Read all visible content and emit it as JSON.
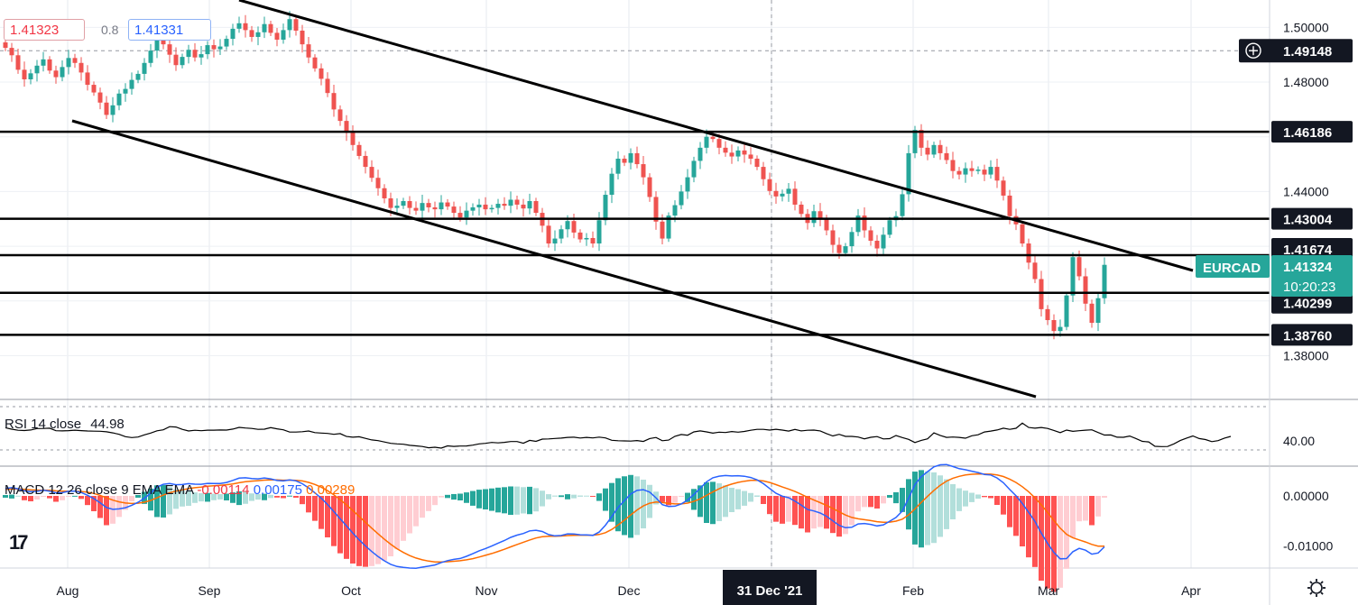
{
  "chart_data": {
    "type": "candlestick",
    "symbol": "EURCAD",
    "colors": {
      "up": "#26a69a",
      "down": "#ef5350",
      "rsi": "#000000",
      "macd": "#2962ff",
      "signal": "#ff6d00",
      "hist_up_strong": "#26a69a",
      "hist_up_weak": "#b2dfdb",
      "hist_down_strong": "#ff5252",
      "hist_down_weak": "#ffcdd2",
      "symbol_badge": "#26a69a",
      "dark_badge": "#131722"
    },
    "price_axis": {
      "ylim": [
        1.364,
        1.51
      ],
      "ticks": [
        "1.50000",
        "1.48000",
        "1.46000",
        "1.44000",
        "1.42000",
        "1.40000",
        "1.38000"
      ]
    },
    "time_axis": {
      "labels": [
        "Aug",
        "Sep",
        "Oct",
        "Nov",
        "Dec",
        "Feb",
        "Mar",
        "Apr"
      ],
      "highlight_label": "31 Dec '21"
    },
    "horizontal_levels": [
      1.46186,
      1.43004,
      1.41674,
      1.40299,
      1.3876
    ],
    "level_labels": [
      "1.46186",
      "1.43004",
      "1.41674",
      "1.40299",
      "1.38760"
    ],
    "crosshair_price": "1.49148",
    "last_price": "1.41324",
    "countdown": "10:20:23",
    "bid_price": "1.41323",
    "ask_price": "1.41331",
    "spread": "0.8",
    "closes": [
      1.4925,
      1.4898,
      1.4845,
      1.481,
      1.4832,
      1.486,
      1.4883,
      1.4842,
      1.4818,
      1.4855,
      1.4888,
      1.487,
      1.4835,
      1.479,
      1.4762,
      1.4725,
      1.468,
      1.4715,
      1.4758,
      1.4775,
      1.4808,
      1.483,
      1.487,
      1.4915,
      1.4962,
      1.4938,
      1.49,
      1.4862,
      1.4892,
      1.4918,
      1.489,
      1.4902,
      1.4935,
      1.492,
      1.493,
      1.4958,
      1.4995,
      1.5015,
      1.499,
      1.4965,
      1.4982,
      1.5012,
      1.498,
      1.4955,
      1.499,
      1.503,
      1.4988,
      1.4938,
      1.489,
      1.485,
      1.4812,
      1.476,
      1.47,
      1.4658,
      1.4615,
      1.457,
      1.453,
      1.449,
      1.445,
      1.4412,
      1.4375,
      1.434,
      1.4348,
      1.4365,
      1.434,
      1.433,
      1.4358,
      1.4342,
      1.4335,
      1.436,
      1.4345,
      1.4322,
      1.4305,
      1.433,
      1.4342,
      1.4352,
      1.4335,
      1.434,
      1.4355,
      1.4348,
      1.437,
      1.4352,
      1.4338,
      1.4365,
      1.4322,
      1.4275,
      1.421,
      1.4228,
      1.4262,
      1.4292,
      1.425,
      1.4225,
      1.423,
      1.421,
      1.4295,
      1.4388,
      1.4465,
      1.452,
      1.4505,
      1.454,
      1.45,
      1.4452,
      1.438,
      1.429,
      1.4228,
      1.4312,
      1.435,
      1.44,
      1.4452,
      1.4512,
      1.456,
      1.46,
      1.4592,
      1.456,
      1.4542,
      1.4528,
      1.455,
      1.4535,
      1.452,
      1.449,
      1.4445,
      1.4402,
      1.4382,
      1.4392,
      1.441,
      1.4352,
      1.4318,
      1.4285,
      1.4328,
      1.43,
      1.4258,
      1.4205,
      1.4175,
      1.42,
      1.4252,
      1.4312,
      1.4258,
      1.422,
      1.4192,
      1.4242,
      1.4295,
      1.431,
      1.439,
      1.454,
      1.4625,
      1.456,
      1.4535,
      1.457,
      1.454,
      1.4515,
      1.4475,
      1.4462,
      1.4485,
      1.4475,
      1.448,
      1.4462,
      1.449,
      1.444,
      1.4385,
      1.431,
      1.428,
      1.421,
      1.414,
      1.408,
      1.397,
      1.393,
      1.389,
      1.3905,
      1.402,
      1.416,
      1.409,
      1.399,
      1.392,
      1.401,
      1.4132
    ],
    "rsi": {
      "label": "RSI 14 close",
      "value": "44.98",
      "tick": "40.00",
      "ylim": [
        25,
        80
      ],
      "series": [
        59.5,
        57.8,
        56.5,
        56.2,
        56.8,
        58.5,
        58.6,
        58.9,
        56.0,
        55.8,
        56.1,
        56.6,
        56.1,
        55.7,
        55.5,
        55.4,
        54.7,
        53.4,
        51.8,
        49.0,
        48.0,
        48.6,
        51.1,
        53.2,
        55.9,
        57.1,
        60.7,
        60.3,
        57.6,
        55.7,
        56.5,
        56.0,
        56.6,
        56.6,
        56.8,
        56.7,
        57.9,
        59.9,
        59.2,
        58.6,
        57.6,
        57.8,
        59.6,
        58.2,
        57.1,
        54.4,
        54.4,
        54.8,
        55.7,
        53.8,
        53.2,
        52.8,
        51.8,
        52.6,
        49.2,
        48.4,
        48.9,
        47.0,
        45.2,
        44.4,
        42.8,
        41.2,
        40.6,
        40.1,
        38.9,
        38.2,
        37.5,
        36.0,
        36.6,
        35.6,
        38.2,
        37.6,
        38.0,
        38.1,
        39.1,
        40.6,
        41.2,
        42.2,
        41.7,
        42.3,
        43.3,
        43.3,
        41.3,
        44.7,
        43.5,
        46.2,
        46.4,
        46.9,
        47.3,
        48.2,
        48.4,
        47.4,
        48.2,
        47.5,
        48.5,
        47.5,
        44.8,
        44.3,
        44.0,
        43.8,
        44.5,
        43.4,
        46.8,
        48.1,
        44.3,
        45.0,
        49.4,
        51.5,
        50.7,
        54.6,
        55.8,
        54.6,
        53.1,
        54.3,
        53.9,
        55.0,
        54.3,
        55.1,
        56.5,
        57.6,
        57.6,
        56.7,
        57.7,
        56.7,
        55.6,
        57.5,
        55.8,
        56.5,
        56.7,
        55.8,
        52.6,
        49.9,
        51.8,
        49.3,
        49.3,
        48.6,
        46.5,
        48.3,
        49.1,
        46.4,
        46.7,
        50.4,
        48.0,
        45.8,
        42.1,
        44.7,
        46.5,
        53.5,
        50.5,
        48.2,
        48.6,
        48.2,
        47.2,
        50.1,
        51.2,
        54.5,
        55.6,
        56.8,
        58.9,
        57.6,
        58.8,
        64.9,
        59.8,
        58.9,
        59.8,
        58.6,
        56.3,
        53.8,
        56.7,
        55.2,
        56.0,
        56.6,
        57.0,
        53.9,
        50.9,
        51.0,
        48.4,
        48.3,
        49.7,
        46.8,
        43.5,
        42.9,
        37.7,
        37.4,
        37.5,
        40.5,
        44.5,
        47.3,
        49.9,
        46.8,
        45.6,
        43.2,
        44.4,
        47.3,
        49.3
      ]
    },
    "macd": {
      "label": "MACD 12 26 close 9 EMA EMA",
      "hist_value": "-0.00114",
      "macd_value": "0.00175",
      "signal_value": "0.00289",
      "ticks": [
        "0.00000",
        "-0.01000"
      ],
      "ylim": [
        -0.0126,
        0.0036
      ],
      "macd_series": [
        0.00148,
        0.00163,
        0.00142,
        0.00101,
        0.00085,
        0.00091,
        0.00113,
        0.00095,
        0.00062,
        0.00065,
        0.00091,
        0.00096,
        0.00069,
        0.00013,
        -0.00054,
        -0.00136,
        -0.00233,
        -0.00269,
        -0.00259,
        -0.00235,
        -0.00187,
        -0.00128,
        -0.00046,
        0.00056,
        0.00174,
        0.00233,
        0.00247,
        0.00224,
        0.00227,
        0.00245,
        0.00234,
        0.00232,
        0.0025,
        0.00246,
        0.00247,
        0.00268,
        0.0031,
        0.00354,
        0.00362,
        0.00345,
        0.00341,
        0.00358,
        0.00341,
        0.00307,
        0.00299,
        0.0032,
        0.003,
        0.00243,
        0.0016,
        0.00062,
        -0.00046,
        -0.00171,
        -0.00313,
        -0.00457,
        -0.00599,
        -0.00742,
        -0.00876,
        -0.00999,
        -0.01111,
        -0.01211,
        -0.01296,
        -0.01367,
        -0.01409,
        -0.01427,
        -0.0144,
        -0.01443,
        -0.01422,
        -0.01403,
        -0.01378,
        -0.0133,
        -0.01293,
        -0.01268,
        -0.01249,
        -0.01206,
        -0.01154,
        -0.01097,
        -0.01052,
        -0.01001,
        -0.00944,
        -0.00891,
        -0.00828,
        -0.00783,
        -0.00751,
        -0.00698,
        -0.00686,
        -0.00711,
        -0.00772,
        -0.00797,
        -0.0079,
        -0.00758,
        -0.00762,
        -0.00776,
        -0.00778,
        -0.00788,
        -0.00721,
        -0.00585,
        -0.00412,
        -0.00228,
        -0.00093,
        0.00039,
        0.00109,
        0.00124,
        0.00075,
        -0.00038,
        -0.00174,
        -0.00211,
        -0.00206,
        -0.00161,
        -0.00082,
        0.00029,
        0.00153,
        0.0028,
        0.00361,
        0.00395,
        0.00406,
        0.00398,
        0.00404,
        0.00392,
        0.00367,
        0.0032,
        0.00244,
        0.00147,
        0.00053,
        -6e-05,
        -0.00036,
        -0.00105,
        -0.00184,
        -0.00271,
        -0.003,
        -0.00342,
        -0.00407,
        -0.00498,
        -0.00589,
        -0.00636,
        -0.00626,
        -0.0056,
        -0.0055,
        -0.00568,
        -0.00599,
        -0.00577,
        -0.00505,
        -0.00431,
        -0.00303,
        -0.00045,
        0.00226,
        0.00385,
        0.00484,
        0.0058,
        0.00621,
        0.00627,
        0.00587,
        0.00543,
        0.00522,
        0.00494,
        0.00467,
        0.00429,
        0.00418,
        0.00358,
        0.00263,
        0.00127,
        2e-05,
        -0.00152,
        -0.00327,
        -0.0051,
        -0.00742,
        -0.00948,
        -0.01131,
        -0.01256,
        -0.01251,
        -0.01114,
        -0.01047,
        -0.01084,
        -0.01163,
        -0.01139,
        -0.01017
      ],
      "signal_series": [
        0.0013,
        0.00137,
        0.00138,
        0.0013,
        0.00121,
        0.00115,
        0.00115,
        0.00111,
        0.00101,
        0.00094,
        0.00093,
        0.00094,
        0.00089,
        0.00074,
        0.00048,
        0.00011,
        -0.00038,
        -0.00084,
        -0.00119,
        -0.00142,
        -0.00151,
        -0.00146,
        -0.00126,
        -0.0009,
        -0.00037,
        0.00017,
        0.00063,
        0.00095,
        0.00121,
        0.00146,
        0.00164,
        0.00177,
        0.00192,
        0.00203,
        0.00212,
        0.00223,
        0.0024,
        0.00263,
        0.00283,
        0.00295,
        0.00304,
        0.00315,
        0.0032,
        0.00318,
        0.00314,
        0.00315,
        0.00312,
        0.00298,
        0.0027,
        0.00228,
        0.00174,
        0.00105,
        0.00021,
        -0.00075,
        -0.0018,
        -0.00292,
        -0.00409,
        -0.00527,
        -0.00644,
        -0.00757,
        -0.00865,
        -0.00965,
        -0.01054,
        -0.01128,
        -0.01191,
        -0.01241,
        -0.01277,
        -0.01302,
        -0.01317,
        -0.0132,
        -0.01314,
        -0.01305,
        -0.01294,
        -0.01276,
        -0.01252,
        -0.01221,
        -0.01187,
        -0.0115,
        -0.01109,
        -0.01065,
        -0.01017,
        -0.0097,
        -0.00926,
        -0.0088,
        -0.00841,
        -0.00815,
        -0.00806,
        -0.00804,
        -0.00801,
        -0.00792,
        -0.00786,
        -0.00784,
        -0.00783,
        -0.00784,
        -0.00771,
        -0.00734,
        -0.0067,
        -0.00581,
        -0.00484,
        -0.00379,
        -0.00281,
        -0.002,
        -0.00145,
        -0.00123,
        -0.00133,
        -0.00149,
        -0.0016,
        -0.0016,
        -0.00144,
        -0.0011,
        -0.00057,
        0.0001,
        0.0008,
        0.00143,
        0.00196,
        0.00236,
        0.0027,
        0.00294,
        0.00309,
        0.00311,
        0.00298,
        0.00268,
        0.00225,
        0.00179,
        0.00136,
        0.00088,
        0.00033,
        -0.00028,
        -0.00083,
        -0.00135,
        -0.00189,
        -0.00251,
        -0.00318,
        -0.00382,
        -0.00431,
        -0.00457,
        -0.00476,
        -0.00494,
        -0.00515,
        -0.00527,
        -0.00523,
        -0.00504,
        -0.00464,
        -0.0038,
        -0.00259,
        -0.0013,
        -7e-05,
        0.0011,
        0.00212,
        0.00295,
        0.00353,
        0.00391,
        0.00417,
        0.00432,
        0.00439,
        0.00437,
        0.00433,
        0.00418,
        0.00387,
        0.00335,
        0.00268,
        0.00184,
        0.00082,
        -0.00037,
        -0.00178,
        -0.00332,
        -0.00492,
        -0.00645,
        -0.00766,
        -0.00836,
        -0.00878,
        -0.00919,
        -0.00968,
        -0.01002,
        -0.01005
      ]
    }
  }
}
